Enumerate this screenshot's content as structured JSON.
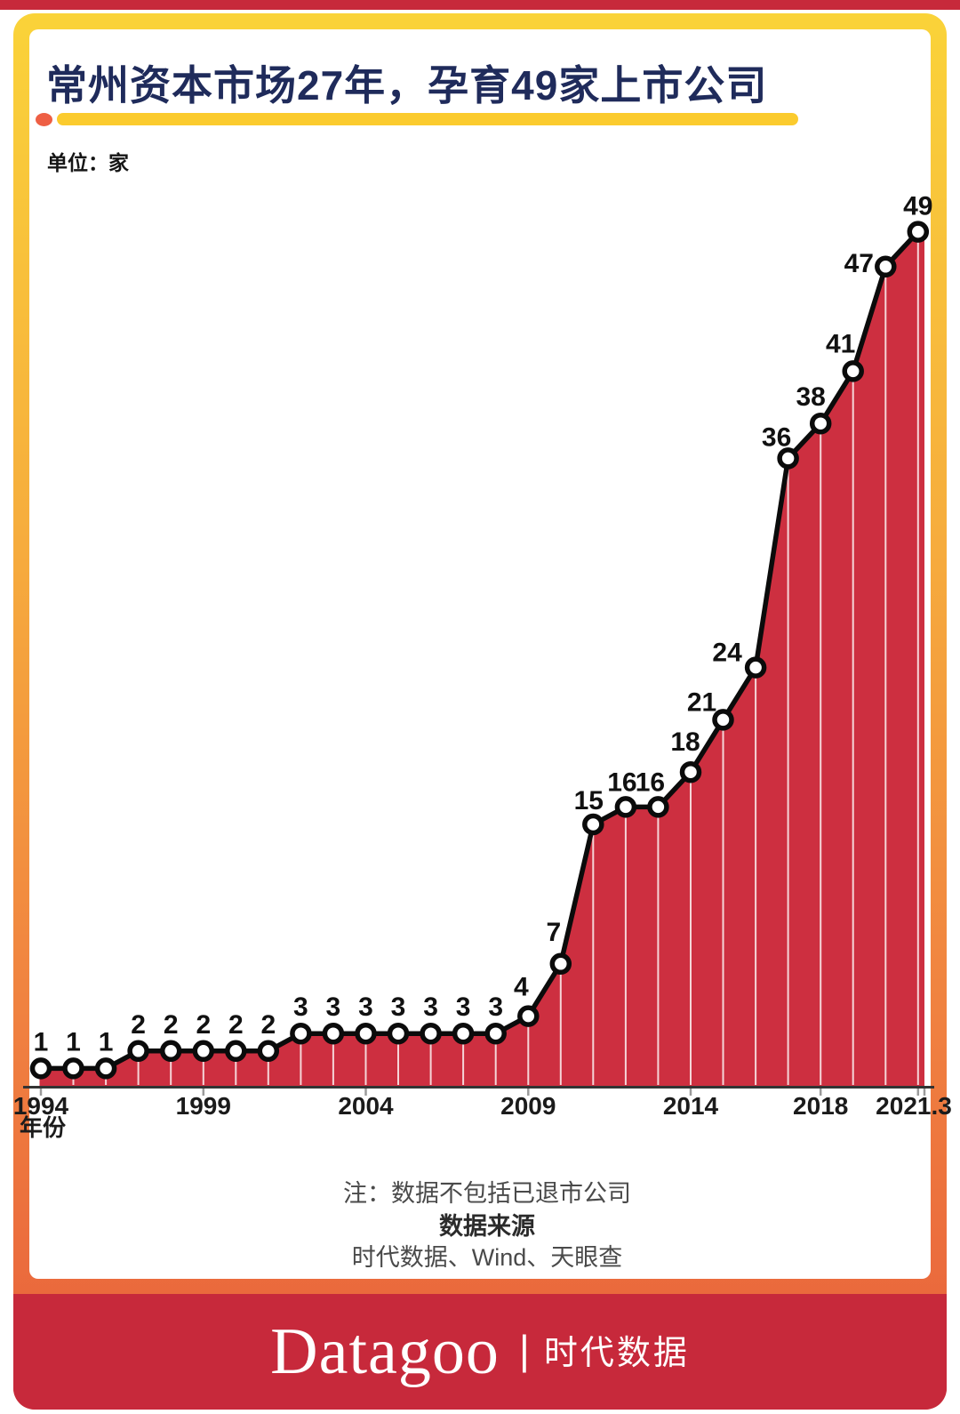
{
  "theme": {
    "red": "#C7293B",
    "yellow": "#FAD339",
    "orange": "#E8603B",
    "navy": "#1F2B5B",
    "underline_yellow": "#FBCB2E",
    "dot_orange": "#EE5F44",
    "note_gray": "#4A4A4A"
  },
  "header": {
    "title": "常州资本市场27年，孕育49家上市公司",
    "unit_label": "单位：家"
  },
  "chart_data": {
    "type": "area",
    "title": "常州资本市场27年，孕育49家上市公司",
    "unit": "家",
    "x": [
      "1994",
      "1995",
      "1996",
      "1997",
      "1998",
      "1999",
      "2000",
      "2001",
      "2002",
      "2003",
      "2004",
      "2005",
      "2006",
      "2007",
      "2008",
      "2009",
      "2010",
      "2011",
      "2012",
      "2013",
      "2014",
      "2015",
      "2016",
      "2017",
      "2018",
      "2019",
      "2020",
      "2021.3"
    ],
    "values": [
      1,
      1,
      1,
      2,
      2,
      2,
      2,
      2,
      3,
      3,
      3,
      3,
      3,
      3,
      3,
      4,
      7,
      15,
      16,
      16,
      18,
      21,
      24,
      36,
      38,
      41,
      47,
      49
    ],
    "xlabel": "年份",
    "x_axis_tick_labels": [
      "1994",
      "1999",
      "2004",
      "2009",
      "2014",
      "2018",
      "2021.3"
    ],
    "x_axis_tick_indices": [
      0,
      5,
      10,
      15,
      20,
      24,
      27
    ],
    "ylim": [
      0,
      52
    ],
    "legend": "none",
    "grid": "white vertical drop lines at every data point",
    "marker": "white circle with black outline",
    "value_labels_shown": true,
    "label_offsets": {
      "15": [
        -8,
        -23
      ],
      "16": [
        -8,
        -26
      ],
      "17": [
        -5,
        -17
      ],
      "18": [
        -4,
        -18
      ],
      "19": [
        -9,
        -18
      ],
      "20": [
        -6,
        -24
      ],
      "21": [
        -24,
        -10
      ],
      "22": [
        -32,
        -7
      ],
      "23": [
        -13,
        -14
      ],
      "24": [
        -11,
        -20
      ],
      "25": [
        -14,
        -21
      ],
      "26": [
        -30,
        6
      ],
      "27": [
        0,
        -19
      ]
    },
    "colors": {
      "area": "#CD2F40",
      "line": "#0B0B0B",
      "marker_fill": "#FFFFFF",
      "gridline": "#FFFFFF",
      "axis": "#333333",
      "tick": "#9B9B9B",
      "text": "#111111",
      "axis_label": "#1B1B1B"
    }
  },
  "notes": {
    "note": "注：数据不包括已退市公司",
    "source_heading": "数据来源",
    "source_text": "时代数据、Wind、天眼查"
  },
  "footer": {
    "brand": "Datagoo",
    "separator": "|",
    "brand_cn": "时代数据"
  }
}
